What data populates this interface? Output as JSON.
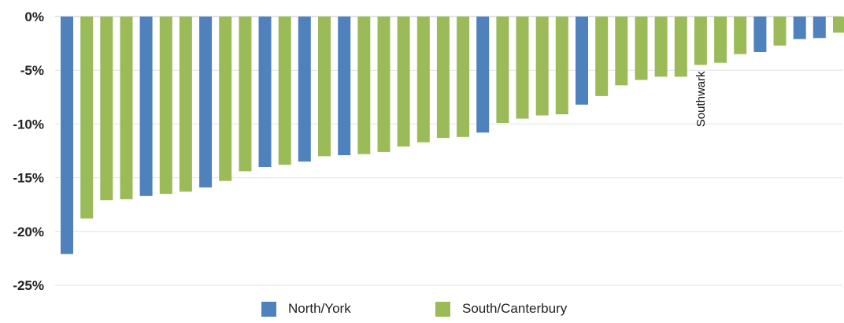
{
  "chart_data": {
    "type": "bar",
    "title": "",
    "xlabel": "",
    "ylabel": "",
    "ylim": [
      -25,
      0
    ],
    "yticks": [
      "0%",
      "-5%",
      "-10%",
      "-15%",
      "-20%",
      "-25%"
    ],
    "ytick_values": [
      0,
      -5,
      -10,
      -15,
      -20,
      -25
    ],
    "grid": true,
    "legend_position": "bottom",
    "series": [
      {
        "name": "North/York",
        "color": "#4F81BD"
      },
      {
        "name": "South/Canterbury",
        "color": "#9BBB59"
      }
    ],
    "values": [
      -22.1,
      -18.8,
      -17.1,
      -17.0,
      -16.7,
      -16.5,
      -16.3,
      -15.9,
      -15.3,
      -14.4,
      -14.0,
      -13.8,
      -13.5,
      -13.0,
      -12.9,
      -12.8,
      -12.6,
      -12.1,
      -11.7,
      -11.3,
      -11.2,
      -10.8,
      -9.9,
      -9.5,
      -9.2,
      -9.1,
      -8.2,
      -7.4,
      -6.4,
      -5.9,
      -5.6,
      -5.6,
      -4.5,
      -4.3,
      -3.5,
      -3.3,
      -2.7,
      -2.1,
      -2.0,
      -1.5
    ],
    "bar_series": [
      0,
      1,
      1,
      1,
      0,
      1,
      1,
      0,
      1,
      1,
      0,
      1,
      0,
      1,
      0,
      1,
      1,
      1,
      1,
      1,
      1,
      0,
      1,
      1,
      1,
      1,
      0,
      1,
      1,
      1,
      1,
      1,
      1,
      1,
      1,
      0,
      1,
      0,
      0,
      1
    ],
    "annotations": [
      {
        "text": "Southwark",
        "bar_index": 32
      }
    ]
  }
}
